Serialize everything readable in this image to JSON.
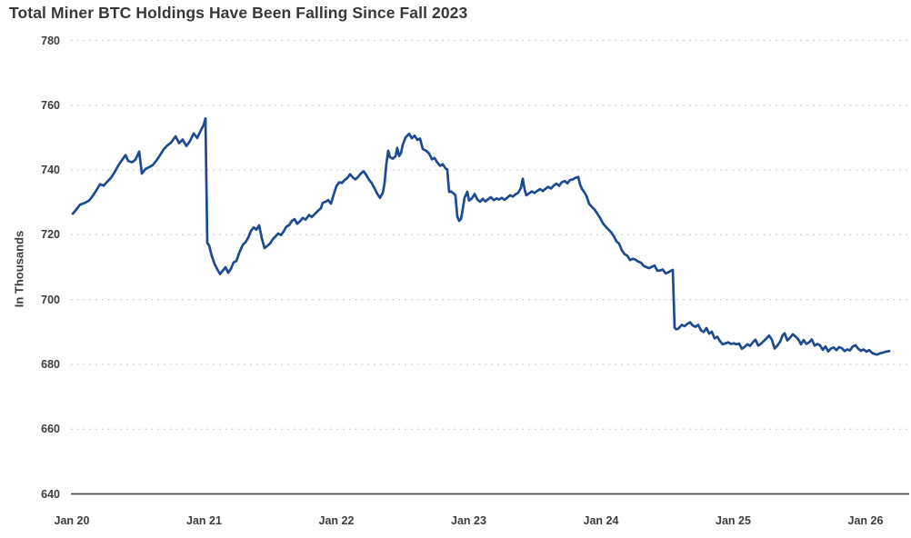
{
  "chart_data": {
    "type": "line",
    "title": "Total Miner BTC Holdings Have Been Falling Since Fall 2023",
    "ylabel": "In Thousands",
    "xlabel": "",
    "ylim": [
      640,
      780
    ],
    "y_ticks": [
      780,
      760,
      740,
      720,
      700,
      680,
      660,
      640
    ],
    "x_ticks": [
      {
        "label": "Jan 20",
        "year": 2020
      },
      {
        "label": "Jan 21",
        "year": 2021
      },
      {
        "label": "Jan 22",
        "year": 2022
      },
      {
        "label": "Jan 23",
        "year": 2023
      },
      {
        "label": "Jan 24",
        "year": 2024
      },
      {
        "label": "Jan 25",
        "year": 2025
      },
      {
        "label": "Jan 26",
        "year": 2026
      }
    ],
    "xlim_years": [
      2020,
      2026.33
    ],
    "grid": "horizontal dotted",
    "legend": "none",
    "series": [
      {
        "name": "Total miner BTC holdings",
        "units": "thousands of BTC",
        "color": "#1e4b8f",
        "x_unit": "years since Jan 2020 (decimal)",
        "points": [
          [
            0.007,
            726.5
          ],
          [
            0.034,
            727.8
          ],
          [
            0.062,
            729.3
          ],
          [
            0.096,
            729.8
          ],
          [
            0.131,
            730.6
          ],
          [
            0.158,
            732.0
          ],
          [
            0.186,
            733.8
          ],
          [
            0.213,
            735.6
          ],
          [
            0.241,
            735.2
          ],
          [
            0.268,
            736.4
          ],
          [
            0.296,
            737.6
          ],
          [
            0.323,
            739.3
          ],
          [
            0.351,
            741.4
          ],
          [
            0.378,
            743.0
          ],
          [
            0.406,
            744.6
          ],
          [
            0.426,
            742.8
          ],
          [
            0.454,
            742.4
          ],
          [
            0.481,
            743.2
          ],
          [
            0.509,
            745.7
          ],
          [
            0.529,
            738.9
          ],
          [
            0.557,
            740.3
          ],
          [
            0.584,
            740.9
          ],
          [
            0.612,
            741.5
          ],
          [
            0.639,
            742.9
          ],
          [
            0.667,
            744.6
          ],
          [
            0.694,
            746.4
          ],
          [
            0.722,
            747.6
          ],
          [
            0.749,
            748.4
          ],
          [
            0.784,
            750.4
          ],
          [
            0.811,
            748.3
          ],
          [
            0.838,
            749.4
          ],
          [
            0.866,
            747.4
          ],
          [
            0.893,
            748.9
          ],
          [
            0.921,
            751.3
          ],
          [
            0.948,
            749.9
          ],
          [
            0.976,
            752.3
          ],
          [
            0.997,
            754.0
          ],
          [
            1.01,
            755.9
          ],
          [
            1.017,
            736.0
          ],
          [
            1.024,
            717.5
          ],
          [
            1.038,
            716.7
          ],
          [
            1.058,
            713.5
          ],
          [
            1.079,
            711.0
          ],
          [
            1.1,
            709.3
          ],
          [
            1.12,
            707.9
          ],
          [
            1.141,
            708.9
          ],
          [
            1.162,
            710.0
          ],
          [
            1.182,
            708.3
          ],
          [
            1.203,
            709.5
          ],
          [
            1.223,
            711.5
          ],
          [
            1.244,
            711.9
          ],
          [
            1.265,
            714.4
          ],
          [
            1.292,
            716.9
          ],
          [
            1.313,
            717.7
          ],
          [
            1.333,
            719.1
          ],
          [
            1.354,
            721.2
          ],
          [
            1.375,
            722.3
          ],
          [
            1.395,
            721.6
          ],
          [
            1.416,
            722.9
          ],
          [
            1.436,
            719.0
          ],
          [
            1.457,
            715.9
          ],
          [
            1.478,
            716.6
          ],
          [
            1.498,
            717.3
          ],
          [
            1.519,
            718.6
          ],
          [
            1.54,
            719.5
          ],
          [
            1.56,
            720.4
          ],
          [
            1.581,
            719.9
          ],
          [
            1.601,
            721.0
          ],
          [
            1.622,
            722.5
          ],
          [
            1.643,
            723.0
          ],
          [
            1.663,
            724.3
          ],
          [
            1.684,
            724.8
          ],
          [
            1.704,
            723.4
          ],
          [
            1.725,
            724.2
          ],
          [
            1.746,
            725.2
          ],
          [
            1.766,
            724.7
          ],
          [
            1.794,
            726.1
          ],
          [
            1.814,
            725.5
          ],
          [
            1.842,
            726.6
          ],
          [
            1.863,
            727.5
          ],
          [
            1.883,
            728.2
          ],
          [
            1.897,
            729.9
          ],
          [
            1.918,
            730.2
          ],
          [
            1.938,
            730.7
          ],
          [
            1.959,
            729.6
          ],
          [
            1.979,
            732.3
          ],
          [
            2.0,
            735.0
          ],
          [
            2.021,
            736.2
          ],
          [
            2.041,
            736.0
          ],
          [
            2.062,
            736.9
          ],
          [
            2.082,
            737.5
          ],
          [
            2.103,
            738.7
          ],
          [
            2.124,
            737.7
          ],
          [
            2.144,
            737.1
          ],
          [
            2.165,
            737.9
          ],
          [
            2.186,
            739.0
          ],
          [
            2.206,
            739.6
          ],
          [
            2.227,
            738.4
          ],
          [
            2.247,
            737.0
          ],
          [
            2.268,
            735.9
          ],
          [
            2.289,
            734.3
          ],
          [
            2.309,
            732.6
          ],
          [
            2.33,
            731.4
          ],
          [
            2.351,
            733.0
          ],
          [
            2.364,
            736.0
          ],
          [
            2.378,
            742.0
          ],
          [
            2.392,
            745.9
          ],
          [
            2.405,
            744.0
          ],
          [
            2.426,
            743.5
          ],
          [
            2.447,
            744.2
          ],
          [
            2.46,
            746.8
          ],
          [
            2.474,
            744.3
          ],
          [
            2.488,
            745.2
          ],
          [
            2.502,
            747.8
          ],
          [
            2.522,
            750.0
          ],
          [
            2.55,
            751.2
          ],
          [
            2.57,
            749.8
          ],
          [
            2.591,
            750.6
          ],
          [
            2.612,
            749.3
          ],
          [
            2.632,
            749.7
          ],
          [
            2.653,
            746.5
          ],
          [
            2.68,
            745.9
          ],
          [
            2.701,
            745.1
          ],
          [
            2.722,
            743.3
          ],
          [
            2.742,
            743.7
          ],
          [
            2.763,
            742.3
          ],
          [
            2.784,
            741.3
          ],
          [
            2.804,
            741.8
          ],
          [
            2.825,
            740.5
          ],
          [
            2.838,
            740.2
          ],
          [
            2.852,
            733.2
          ],
          [
            2.866,
            733.4
          ],
          [
            2.887,
            732.7
          ],
          [
            2.9,
            732.2
          ],
          [
            2.914,
            725.6
          ],
          [
            2.928,
            724.3
          ],
          [
            2.942,
            724.9
          ],
          [
            2.955,
            728.0
          ],
          [
            2.969,
            731.5
          ],
          [
            2.99,
            733.3
          ],
          [
            3.003,
            730.6
          ],
          [
            3.024,
            731.2
          ],
          [
            3.045,
            732.6
          ],
          [
            3.065,
            730.9
          ],
          [
            3.086,
            730.2
          ],
          [
            3.106,
            731.1
          ],
          [
            3.127,
            730.3
          ],
          [
            3.148,
            731.0
          ],
          [
            3.168,
            731.6
          ],
          [
            3.189,
            730.7
          ],
          [
            3.21,
            731.2
          ],
          [
            3.23,
            730.9
          ],
          [
            3.251,
            731.4
          ],
          [
            3.271,
            730.8
          ],
          [
            3.292,
            731.5
          ],
          [
            3.313,
            732.2
          ],
          [
            3.333,
            731.8
          ],
          [
            3.354,
            732.5
          ],
          [
            3.375,
            733.0
          ],
          [
            3.395,
            734.5
          ],
          [
            3.409,
            737.3
          ],
          [
            3.423,
            734.0
          ],
          [
            3.436,
            732.2
          ],
          [
            3.457,
            732.8
          ],
          [
            3.478,
            733.4
          ],
          [
            3.498,
            732.9
          ],
          [
            3.519,
            733.6
          ],
          [
            3.54,
            734.1
          ],
          [
            3.56,
            733.5
          ],
          [
            3.581,
            734.2
          ],
          [
            3.601,
            734.8
          ],
          [
            3.622,
            734.3
          ],
          [
            3.643,
            735.2
          ],
          [
            3.663,
            735.8
          ],
          [
            3.684,
            735.1
          ],
          [
            3.704,
            736.2
          ],
          [
            3.725,
            736.6
          ],
          [
            3.746,
            735.9
          ],
          [
            3.766,
            736.9
          ],
          [
            3.787,
            737.1
          ],
          [
            3.808,
            737.6
          ],
          [
            3.828,
            737.9
          ],
          [
            3.842,
            735.5
          ],
          [
            3.856,
            734.2
          ],
          [
            3.876,
            733.0
          ],
          [
            3.89,
            732.0
          ],
          [
            3.911,
            729.5
          ],
          [
            3.931,
            728.6
          ],
          [
            3.952,
            727.8
          ],
          [
            3.973,
            726.5
          ],
          [
            3.993,
            725.2
          ],
          [
            4.014,
            723.6
          ],
          [
            4.034,
            722.6
          ],
          [
            4.055,
            721.7
          ],
          [
            4.076,
            720.8
          ],
          [
            4.096,
            719.6
          ],
          [
            4.117,
            718.0
          ],
          [
            4.137,
            717.3
          ],
          [
            4.158,
            715.2
          ],
          [
            4.179,
            714.0
          ],
          [
            4.199,
            713.5
          ],
          [
            4.22,
            712.2
          ],
          [
            4.241,
            712.6
          ],
          [
            4.261,
            712.3
          ],
          [
            4.282,
            711.7
          ],
          [
            4.302,
            711.4
          ],
          [
            4.323,
            710.4
          ],
          [
            4.344,
            710.0
          ],
          [
            4.364,
            709.7
          ],
          [
            4.385,
            710.1
          ],
          [
            4.405,
            710.5
          ],
          [
            4.426,
            708.9
          ],
          [
            4.447,
            709.0
          ],
          [
            4.467,
            709.3
          ],
          [
            4.488,
            708.1
          ],
          [
            4.509,
            708.4
          ],
          [
            4.529,
            708.9
          ],
          [
            4.543,
            709.2
          ],
          [
            4.55,
            700.0
          ],
          [
            4.557,
            691.3
          ],
          [
            4.57,
            690.8
          ],
          [
            4.584,
            691.0
          ],
          [
            4.598,
            691.6
          ],
          [
            4.612,
            692.2
          ],
          [
            4.632,
            691.8
          ],
          [
            4.653,
            692.5
          ],
          [
            4.673,
            693.0
          ],
          [
            4.694,
            692.0
          ],
          [
            4.715,
            691.6
          ],
          [
            4.735,
            692.2
          ],
          [
            4.756,
            690.5
          ],
          [
            4.777,
            690.0
          ],
          [
            4.797,
            691.2
          ],
          [
            4.818,
            689.5
          ],
          [
            4.838,
            690.1
          ],
          [
            4.859,
            688.0
          ],
          [
            4.88,
            688.5
          ],
          [
            4.9,
            687.1
          ],
          [
            4.921,
            686.2
          ],
          [
            4.941,
            686.5
          ],
          [
            4.962,
            686.8
          ],
          [
            4.983,
            686.3
          ],
          [
            5.003,
            686.5
          ],
          [
            5.024,
            686.2
          ],
          [
            5.045,
            686.4
          ],
          [
            5.065,
            684.8
          ],
          [
            5.086,
            685.4
          ],
          [
            5.107,
            686.2
          ],
          [
            5.127,
            685.7
          ],
          [
            5.148,
            686.8
          ],
          [
            5.168,
            687.6
          ],
          [
            5.189,
            685.8
          ],
          [
            5.21,
            686.4
          ],
          [
            5.23,
            687.2
          ],
          [
            5.251,
            688.0
          ],
          [
            5.271,
            688.9
          ],
          [
            5.292,
            687.6
          ],
          [
            5.313,
            684.9
          ],
          [
            5.333,
            685.8
          ],
          [
            5.354,
            687.0
          ],
          [
            5.374,
            689.0
          ],
          [
            5.388,
            689.6
          ],
          [
            5.409,
            687.4
          ],
          [
            5.429,
            688.2
          ],
          [
            5.45,
            689.3
          ],
          [
            5.471,
            688.6
          ],
          [
            5.491,
            687.8
          ],
          [
            5.512,
            686.2
          ],
          [
            5.532,
            687.5
          ],
          [
            5.553,
            686.3
          ],
          [
            5.574,
            686.8
          ],
          [
            5.594,
            687.7
          ],
          [
            5.615,
            685.8
          ],
          [
            5.635,
            686.3
          ],
          [
            5.656,
            685.9
          ],
          [
            5.677,
            684.5
          ],
          [
            5.697,
            685.5
          ],
          [
            5.718,
            684.0
          ],
          [
            5.738,
            684.9
          ],
          [
            5.759,
            685.2
          ],
          [
            5.78,
            684.4
          ],
          [
            5.8,
            685.3
          ],
          [
            5.821,
            685.0
          ],
          [
            5.841,
            684.1
          ],
          [
            5.862,
            684.6
          ],
          [
            5.882,
            684.3
          ],
          [
            5.903,
            685.5
          ],
          [
            5.924,
            685.9
          ],
          [
            5.945,
            684.8
          ],
          [
            5.965,
            684.2
          ],
          [
            5.986,
            684.6
          ],
          [
            6.007,
            683.9
          ],
          [
            6.027,
            684.4
          ],
          [
            6.048,
            683.6
          ],
          [
            6.068,
            683.2
          ],
          [
            6.089,
            683.0
          ],
          [
            6.11,
            683.4
          ],
          [
            6.13,
            683.6
          ],
          [
            6.151,
            683.9
          ],
          [
            6.179,
            684.1
          ]
        ]
      }
    ]
  },
  "style": {
    "line_color": "#1e4b8f",
    "grid_color": "#c9c9c9",
    "axis_color": "#4d4d4d",
    "text_color": "#3d3d3d",
    "title_color": "#383838",
    "background": "#ffffff"
  }
}
